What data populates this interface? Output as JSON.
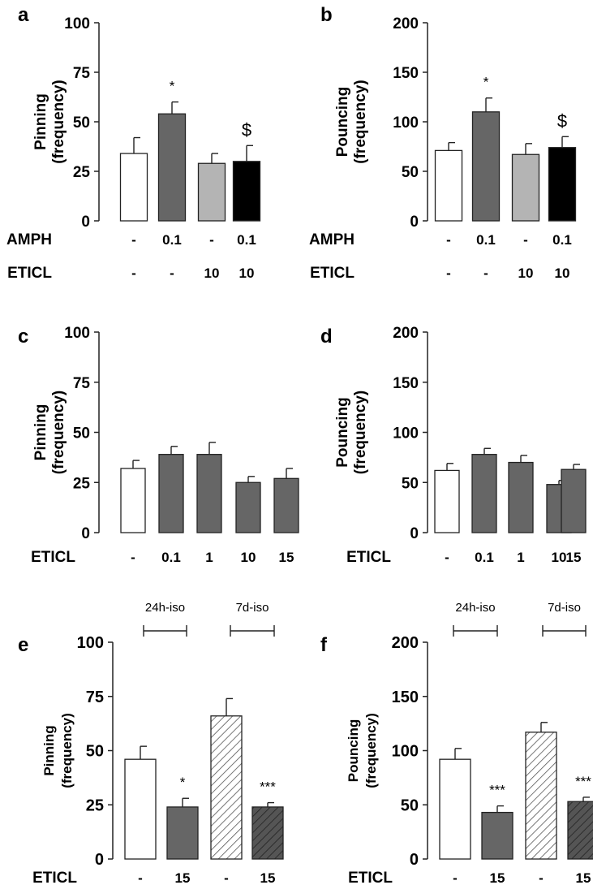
{
  "colors": {
    "white": "#ffffff",
    "dark": "#666666",
    "light": "#b4b4b4",
    "black": "#000000",
    "hatch_light": "#ffffff",
    "hatch_dark": "#555555"
  },
  "chart_data": [
    {
      "panel": "a",
      "type": "bar",
      "ylabel_line1": "Pinning",
      "ylabel_line2": "(frequency)",
      "ylim": [
        0,
        100
      ],
      "yticks": [
        "0",
        "25",
        "50",
        "75",
        "100"
      ],
      "categories": [
        "-/-",
        "0.1/-",
        "-/10",
        "0.1/10"
      ],
      "values": [
        34,
        54,
        29,
        30
      ],
      "errors": [
        8,
        6,
        5,
        8
      ],
      "fills": [
        "white",
        "dark",
        "light",
        "black"
      ],
      "annotations": [
        "",
        "*",
        "",
        "$"
      ],
      "row_labels": [
        {
          "name": "AMPH",
          "values": [
            "-",
            "0.1",
            "-",
            "0.1"
          ]
        },
        {
          "name": "ETICL",
          "values": [
            "-",
            "-",
            "10",
            "10"
          ]
        }
      ]
    },
    {
      "panel": "b",
      "type": "bar",
      "ylabel_line1": "Pouncing",
      "ylabel_line2": "(frequency)",
      "ylim": [
        0,
        200
      ],
      "yticks": [
        "0",
        "50",
        "100",
        "150",
        "200"
      ],
      "categories": [
        "-/-",
        "0.1/-",
        "-/10",
        "0.1/10"
      ],
      "values": [
        71,
        110,
        67,
        74
      ],
      "errors": [
        8,
        14,
        11,
        11
      ],
      "fills": [
        "white",
        "dark",
        "light",
        "black"
      ],
      "annotations": [
        "",
        "*",
        "",
        "$"
      ],
      "row_labels": [
        {
          "name": "AMPH",
          "values": [
            "-",
            "0.1",
            "-",
            "0.1"
          ]
        },
        {
          "name": "ETICL",
          "values": [
            "-",
            "-",
            "10",
            "10"
          ]
        }
      ]
    },
    {
      "panel": "c",
      "type": "bar",
      "ylabel_line1": "Pinning",
      "ylabel_line2": "(frequency)",
      "ylim": [
        0,
        100
      ],
      "yticks": [
        "0",
        "25",
        "50",
        "75",
        "100"
      ],
      "categories": [
        "-",
        "0.1",
        "1",
        "10",
        "15"
      ],
      "values": [
        32,
        39,
        39,
        25,
        27
      ],
      "errors": [
        4,
        4,
        6,
        3,
        5
      ],
      "fills": [
        "white",
        "dark",
        "dark",
        "dark",
        "dark"
      ],
      "annotations": [
        "",
        "",
        "",
        "",
        ""
      ],
      "row_labels": [
        {
          "name": "ETICL",
          "values": [
            "-",
            "0.1",
            "1",
            "10",
            "15"
          ]
        }
      ]
    },
    {
      "panel": "d",
      "type": "bar",
      "ylabel_line1": "Pouncing",
      "ylabel_line2": "(frequency)",
      "ylim": [
        0,
        200
      ],
      "yticks": [
        "0",
        "50",
        "100",
        "150",
        "200"
      ],
      "categories": [
        "-",
        "0.1",
        "1",
        "10",
        "15"
      ],
      "values": [
        62,
        78,
        70,
        48,
        63
      ],
      "errors": [
        7,
        6,
        7,
        4,
        5
      ],
      "fills": [
        "white",
        "dark",
        "dark",
        "dark",
        "dark"
      ],
      "annotations": [
        "",
        "",
        "",
        "",
        ""
      ],
      "row_labels": [
        {
          "name": "ETICL",
          "values": [
            "-",
            "0.1",
            "1",
            "10",
            "15"
          ]
        }
      ]
    },
    {
      "panel": "e",
      "type": "bar",
      "ylabel_line1": "Pinning",
      "ylabel_line2": "(frequency)",
      "ylim": [
        0,
        100
      ],
      "yticks": [
        "0",
        "25",
        "50",
        "75",
        "100"
      ],
      "categories": [
        "24h-iso -",
        "24h-iso 15",
        "7d-iso -",
        "7d-iso 15"
      ],
      "values": [
        46,
        24,
        66,
        24
      ],
      "errors": [
        6,
        4,
        8,
        2
      ],
      "fills": [
        "white",
        "dark",
        "hatch_light",
        "hatch_dark"
      ],
      "annotations": [
        "",
        "*",
        "",
        "***"
      ],
      "groups": [
        "24h-iso",
        "7d-iso"
      ],
      "row_labels": [
        {
          "name": "ETICL",
          "values": [
            "-",
            "15",
            "-",
            "15"
          ]
        }
      ]
    },
    {
      "panel": "f",
      "type": "bar",
      "ylabel_line1": "Pouncing",
      "ylabel_line2": "(frequency)",
      "ylim": [
        0,
        200
      ],
      "yticks": [
        "0",
        "50",
        "100",
        "150",
        "200"
      ],
      "categories": [
        "24h-iso -",
        "24h-iso 15",
        "7d-iso -",
        "7d-iso 15"
      ],
      "values": [
        92,
        43,
        117,
        53
      ],
      "errors": [
        10,
        6,
        9,
        4
      ],
      "fills": [
        "white",
        "dark",
        "hatch_light",
        "hatch_dark"
      ],
      "annotations": [
        "",
        "***",
        "",
        "***"
      ],
      "groups": [
        "24h-iso",
        "7d-iso"
      ],
      "row_labels": [
        {
          "name": "ETICL",
          "values": [
            "-",
            "15",
            "-",
            "15"
          ]
        }
      ]
    }
  ]
}
